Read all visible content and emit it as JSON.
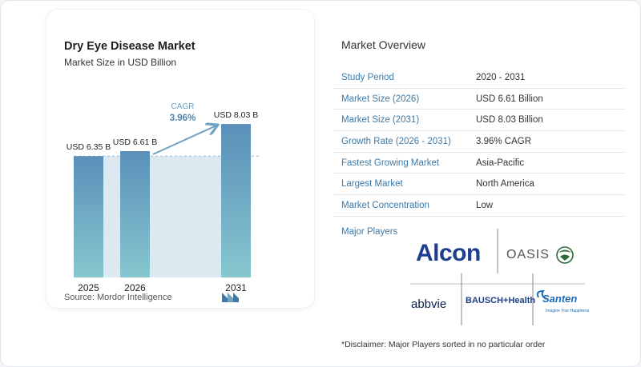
{
  "chart_data": {
    "type": "bar",
    "title": "Dry Eye Disease Market",
    "subtitle": "Market Size in USD Billion",
    "categories": [
      "2025",
      "2026",
      "2031"
    ],
    "values": [
      6.35,
      6.61,
      8.03
    ],
    "data_labels": [
      "USD 6.35 B",
      "USD 6.61 B",
      "USD 8.03 B"
    ],
    "cagr_label": "CAGR",
    "cagr_value": "3.96%",
    "bar_color_top": "#5b8fb9",
    "bar_color_bottom": "#86c7cf"
  },
  "source": "Source:  Mordor Intelligence",
  "overview": {
    "title": "Market Overview",
    "rows": [
      {
        "label": "Study Period",
        "value": "2020 - 2031"
      },
      {
        "label": "Market Size (2026)",
        "value": "USD 6.61 Billion"
      },
      {
        "label": "Market Size (2031)",
        "value": "USD 8.03 Billion"
      },
      {
        "label": "Growth Rate (2026 - 2031)",
        "value": "3.96% CAGR"
      },
      {
        "label": "Fastest Growing Market",
        "value": "Asia-Pacific"
      },
      {
        "label": "Largest Market",
        "value": "North America"
      },
      {
        "label": "Market Concentration",
        "value": "Low"
      }
    ]
  },
  "players": {
    "label": "Major Players",
    "logos": [
      "Alcon",
      "OASIS",
      "abbvie",
      "BAUSCH+Health",
      "Santen"
    ],
    "santen_tagline": "Imagine Your Happiness"
  },
  "disclaimer": "*Disclaimer: Major Players sorted in no particular order"
}
